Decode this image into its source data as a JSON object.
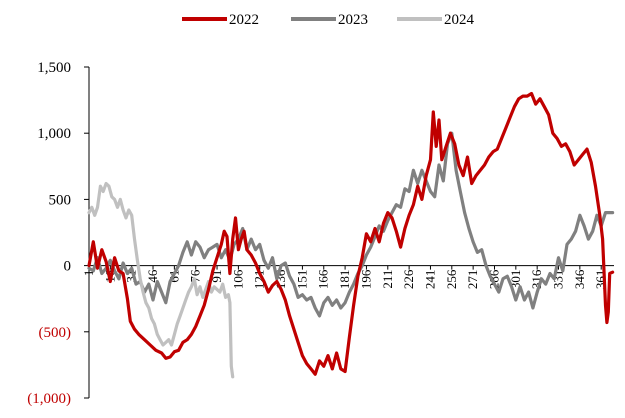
{
  "chart_data": {
    "type": "line",
    "title": "",
    "xlabel": "",
    "ylabel": "",
    "xlim": [
      1,
      365
    ],
    "ylim": [
      -1000,
      1500
    ],
    "grid": false,
    "legend_position": "top-center",
    "x_ticks": [
      "1",
      "16",
      "31",
      "46",
      "61",
      "76",
      "91",
      "106",
      "121",
      "136",
      "151",
      "166",
      "181",
      "196",
      "211",
      "226",
      "241",
      "256",
      "271",
      "286",
      "301",
      "316",
      "331",
      "346",
      "361"
    ],
    "y_ticks": [
      {
        "value": 1500,
        "label": "1,500"
      },
      {
        "value": 1000,
        "label": "1,000"
      },
      {
        "value": 500,
        "label": "500"
      },
      {
        "value": 0,
        "label": "0"
      },
      {
        "value": -500,
        "label": "(500)"
      },
      {
        "value": -1000,
        "label": "(1,000)"
      }
    ],
    "negative_tick_color": "#c00000",
    "series": [
      {
        "name": "2022",
        "color": "#c00000",
        "points": [
          [
            1,
            0
          ],
          [
            4,
            180
          ],
          [
            7,
            -20
          ],
          [
            10,
            120
          ],
          [
            13,
            30
          ],
          [
            16,
            -120
          ],
          [
            19,
            60
          ],
          [
            22,
            -40
          ],
          [
            25,
            -60
          ],
          [
            28,
            -250
          ],
          [
            30,
            -420
          ],
          [
            33,
            -480
          ],
          [
            36,
            -520
          ],
          [
            40,
            -560
          ],
          [
            44,
            -600
          ],
          [
            48,
            -640
          ],
          [
            52,
            -660
          ],
          [
            55,
            -700
          ],
          [
            58,
            -690
          ],
          [
            61,
            -650
          ],
          [
            64,
            -640
          ],
          [
            67,
            -580
          ],
          [
            70,
            -560
          ],
          [
            73,
            -520
          ],
          [
            76,
            -460
          ],
          [
            79,
            -380
          ],
          [
            82,
            -300
          ],
          [
            85,
            -180
          ],
          [
            88,
            -40
          ],
          [
            91,
            60
          ],
          [
            94,
            160
          ],
          [
            96,
            260
          ],
          [
            98,
            220
          ],
          [
            100,
            -60
          ],
          [
            102,
            200
          ],
          [
            104,
            360
          ],
          [
            106,
            120
          ],
          [
            108,
            200
          ],
          [
            110,
            260
          ],
          [
            112,
            120
          ],
          [
            115,
            80
          ],
          [
            118,
            20
          ],
          [
            121,
            -60
          ],
          [
            124,
            -120
          ],
          [
            127,
            -200
          ],
          [
            130,
            -150
          ],
          [
            133,
            -120
          ],
          [
            136,
            -180
          ],
          [
            139,
            -260
          ],
          [
            142,
            -380
          ],
          [
            145,
            -480
          ],
          [
            148,
            -580
          ],
          [
            151,
            -680
          ],
          [
            154,
            -740
          ],
          [
            157,
            -780
          ],
          [
            160,
            -820
          ],
          [
            163,
            -720
          ],
          [
            166,
            -760
          ],
          [
            169,
            -680
          ],
          [
            172,
            -780
          ],
          [
            175,
            -660
          ],
          [
            178,
            -780
          ],
          [
            181,
            -800
          ],
          [
            184,
            -540
          ],
          [
            187,
            -300
          ],
          [
            190,
            -80
          ],
          [
            193,
            60
          ],
          [
            196,
            240
          ],
          [
            199,
            180
          ],
          [
            202,
            280
          ],
          [
            205,
            180
          ],
          [
            208,
            320
          ],
          [
            211,
            400
          ],
          [
            214,
            360
          ],
          [
            217,
            260
          ],
          [
            220,
            140
          ],
          [
            223,
            280
          ],
          [
            226,
            380
          ],
          [
            229,
            460
          ],
          [
            232,
            600
          ],
          [
            235,
            500
          ],
          [
            238,
            680
          ],
          [
            241,
            800
          ],
          [
            243,
            1160
          ],
          [
            245,
            900
          ],
          [
            247,
            1100
          ],
          [
            249,
            800
          ],
          [
            252,
            900
          ],
          [
            255,
            1000
          ],
          [
            258,
            920
          ],
          [
            261,
            760
          ],
          [
            264,
            680
          ],
          [
            267,
            820
          ],
          [
            270,
            620
          ],
          [
            273,
            680
          ],
          [
            276,
            720
          ],
          [
            279,
            760
          ],
          [
            282,
            820
          ],
          [
            285,
            860
          ],
          [
            288,
            880
          ],
          [
            291,
            960
          ],
          [
            294,
            1040
          ],
          [
            297,
            1120
          ],
          [
            300,
            1200
          ],
          [
            303,
            1260
          ],
          [
            306,
            1280
          ],
          [
            309,
            1280
          ],
          [
            312,
            1300
          ],
          [
            315,
            1220
          ],
          [
            318,
            1260
          ],
          [
            321,
            1200
          ],
          [
            324,
            1140
          ],
          [
            327,
            1000
          ],
          [
            330,
            960
          ],
          [
            333,
            900
          ],
          [
            336,
            920
          ],
          [
            339,
            860
          ],
          [
            342,
            760
          ],
          [
            345,
            800
          ],
          [
            348,
            840
          ],
          [
            351,
            880
          ],
          [
            354,
            780
          ],
          [
            357,
            600
          ],
          [
            360,
            380
          ],
          [
            362,
            200
          ],
          [
            364,
            -300
          ],
          [
            365,
            -430
          ],
          [
            366,
            -350
          ],
          [
            367,
            -60
          ],
          [
            369,
            -50
          ]
        ]
      },
      {
        "name": "2023",
        "color": "#808080",
        "points": [
          [
            1,
            -20
          ],
          [
            4,
            -40
          ],
          [
            7,
            60
          ],
          [
            10,
            -60
          ],
          [
            13,
            -20
          ],
          [
            16,
            40
          ],
          [
            19,
            -40
          ],
          [
            22,
            -100
          ],
          [
            25,
            20
          ],
          [
            28,
            -60
          ],
          [
            31,
            -20
          ],
          [
            34,
            -140
          ],
          [
            37,
            -120
          ],
          [
            40,
            -200
          ],
          [
            43,
            -140
          ],
          [
            46,
            -260
          ],
          [
            49,
            -120
          ],
          [
            52,
            -200
          ],
          [
            55,
            -280
          ],
          [
            58,
            -120
          ],
          [
            61,
            -60
          ],
          [
            64,
            0
          ],
          [
            67,
            100
          ],
          [
            70,
            180
          ],
          [
            73,
            80
          ],
          [
            76,
            180
          ],
          [
            79,
            140
          ],
          [
            82,
            60
          ],
          [
            85,
            120
          ],
          [
            88,
            140
          ],
          [
            91,
            160
          ],
          [
            94,
            60
          ],
          [
            97,
            120
          ],
          [
            100,
            40
          ],
          [
            103,
            160
          ],
          [
            106,
            200
          ],
          [
            109,
            280
          ],
          [
            112,
            120
          ],
          [
            115,
            200
          ],
          [
            118,
            120
          ],
          [
            121,
            160
          ],
          [
            124,
            40
          ],
          [
            127,
            -20
          ],
          [
            130,
            60
          ],
          [
            133,
            -100
          ],
          [
            136,
            0
          ],
          [
            139,
            20
          ],
          [
            142,
            -80
          ],
          [
            145,
            -140
          ],
          [
            148,
            -240
          ],
          [
            151,
            -220
          ],
          [
            154,
            -260
          ],
          [
            157,
            -240
          ],
          [
            160,
            -320
          ],
          [
            163,
            -380
          ],
          [
            166,
            -280
          ],
          [
            169,
            -240
          ],
          [
            172,
            -300
          ],
          [
            175,
            -260
          ],
          [
            178,
            -320
          ],
          [
            181,
            -280
          ],
          [
            184,
            -200
          ],
          [
            187,
            -140
          ],
          [
            190,
            -60
          ],
          [
            193,
            0
          ],
          [
            196,
            80
          ],
          [
            199,
            140
          ],
          [
            202,
            220
          ],
          [
            205,
            300
          ],
          [
            208,
            260
          ],
          [
            211,
            340
          ],
          [
            214,
            400
          ],
          [
            217,
            460
          ],
          [
            220,
            440
          ],
          [
            223,
            580
          ],
          [
            226,
            560
          ],
          [
            229,
            720
          ],
          [
            232,
            620
          ],
          [
            235,
            720
          ],
          [
            238,
            640
          ],
          [
            241,
            560
          ],
          [
            244,
            520
          ],
          [
            247,
            760
          ],
          [
            250,
            640
          ],
          [
            253,
            920
          ],
          [
            256,
            1000
          ],
          [
            259,
            720
          ],
          [
            262,
            560
          ],
          [
            265,
            400
          ],
          [
            268,
            280
          ],
          [
            271,
            180
          ],
          [
            274,
            100
          ],
          [
            277,
            120
          ],
          [
            280,
            0
          ],
          [
            283,
            -80
          ],
          [
            286,
            -140
          ],
          [
            289,
            -200
          ],
          [
            292,
            -100
          ],
          [
            295,
            -80
          ],
          [
            298,
            -160
          ],
          [
            301,
            -260
          ],
          [
            304,
            -160
          ],
          [
            307,
            -260
          ],
          [
            310,
            -200
          ],
          [
            313,
            -320
          ],
          [
            316,
            -200
          ],
          [
            319,
            -100
          ],
          [
            322,
            -140
          ],
          [
            325,
            -60
          ],
          [
            328,
            -100
          ],
          [
            331,
            60
          ],
          [
            334,
            -40
          ],
          [
            337,
            160
          ],
          [
            340,
            200
          ],
          [
            343,
            260
          ],
          [
            346,
            380
          ],
          [
            349,
            300
          ],
          [
            352,
            200
          ],
          [
            355,
            260
          ],
          [
            358,
            380
          ],
          [
            361,
            300
          ],
          [
            364,
            400
          ],
          [
            367,
            400
          ],
          [
            369,
            400
          ]
        ]
      },
      {
        "name": "2024",
        "color": "#c0c0c0",
        "points": [
          [
            1,
            400
          ],
          [
            3,
            440
          ],
          [
            5,
            380
          ],
          [
            7,
            440
          ],
          [
            9,
            600
          ],
          [
            11,
            560
          ],
          [
            13,
            620
          ],
          [
            15,
            600
          ],
          [
            17,
            520
          ],
          [
            19,
            500
          ],
          [
            21,
            440
          ],
          [
            23,
            500
          ],
          [
            25,
            420
          ],
          [
            27,
            360
          ],
          [
            29,
            420
          ],
          [
            31,
            380
          ],
          [
            33,
            200
          ],
          [
            35,
            40
          ],
          [
            37,
            -100
          ],
          [
            39,
            -200
          ],
          [
            41,
            -280
          ],
          [
            43,
            -320
          ],
          [
            45,
            -400
          ],
          [
            47,
            -440
          ],
          [
            49,
            -520
          ],
          [
            51,
            -560
          ],
          [
            53,
            -600
          ],
          [
            55,
            -580
          ],
          [
            57,
            -560
          ],
          [
            59,
            -600
          ],
          [
            61,
            -520
          ],
          [
            63,
            -440
          ],
          [
            65,
            -380
          ],
          [
            67,
            -320
          ],
          [
            69,
            -260
          ],
          [
            71,
            -200
          ],
          [
            73,
            -160
          ],
          [
            75,
            -100
          ],
          [
            77,
            -220
          ],
          [
            79,
            -160
          ],
          [
            81,
            -240
          ],
          [
            83,
            -180
          ],
          [
            85,
            -120
          ],
          [
            87,
            -200
          ],
          [
            89,
            -160
          ],
          [
            91,
            -180
          ],
          [
            93,
            -200
          ],
          [
            95,
            -140
          ],
          [
            97,
            -240
          ],
          [
            99,
            -220
          ],
          [
            100,
            -280
          ],
          [
            101,
            -760
          ],
          [
            102,
            -840
          ]
        ]
      }
    ]
  }
}
